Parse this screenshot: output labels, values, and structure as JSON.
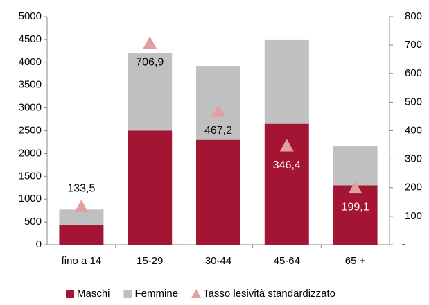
{
  "chart_data": {
    "type": "bar",
    "categories": [
      "fino a 14",
      "15-29",
      "30-44",
      "45-64",
      "65 +"
    ],
    "series": [
      {
        "name": "Maschi",
        "color": "#a31533",
        "values": [
          440,
          2500,
          2300,
          2650,
          1300
        ]
      },
      {
        "name": "Femmine",
        "color": "#c0c0c0",
        "values": [
          330,
          1700,
          1620,
          1850,
          870
        ]
      },
      {
        "name": "Tasso lesività standardizzato",
        "color": "#e0a0a0",
        "axis": "y2",
        "marker": "triangle",
        "values": [
          133.5,
          706.9,
          467.2,
          346.4,
          199.1
        ],
        "value_labels": [
          "133,5",
          "706,9",
          "467,2",
          "346,4",
          "199,1"
        ]
      }
    ],
    "stacked": true,
    "ylim": [
      0,
      5000
    ],
    "yticks": [
      0,
      500,
      1000,
      1500,
      2000,
      2500,
      3000,
      3500,
      4000,
      4500,
      5000
    ],
    "y2lim": [
      0,
      800
    ],
    "y2ticks": [
      {
        "value": 0,
        "label": "-"
      },
      100,
      200,
      300,
      400,
      500,
      600,
      700,
      800
    ],
    "legend": "bottom"
  }
}
